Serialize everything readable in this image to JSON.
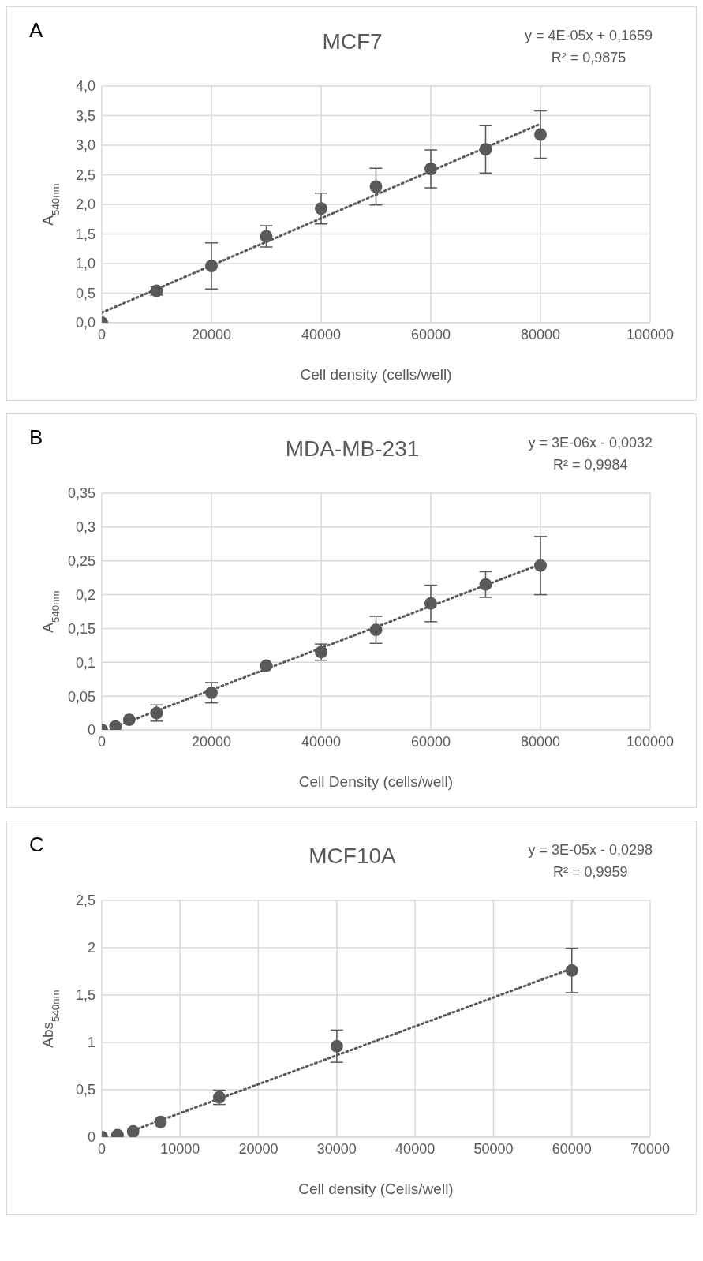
{
  "chart_data": [
    {
      "type": "scatter",
      "title": "MCF7",
      "xlabel": "Cell density (cells/well)",
      "ylabel": "A$_{540nm}$",
      "annotations": [
        "A",
        "y = 4E-05x + 0,1659",
        "R² = 0,9875"
      ],
      "xlim": [
        0,
        100000
      ],
      "xticks": [
        0,
        20000,
        40000,
        60000,
        80000,
        100000
      ],
      "ylim": [
        0,
        4
      ],
      "yticks": [
        {
          "value": 0,
          "label": "0,0"
        },
        {
          "value": 0.5,
          "label": "0,5"
        },
        {
          "value": 1,
          "label": "1,0"
        },
        {
          "value": 1.5,
          "label": "1,5"
        },
        {
          "value": 2,
          "label": "2,0"
        },
        {
          "value": 2.5,
          "label": "2,5"
        },
        {
          "value": 3,
          "label": "3,0"
        },
        {
          "value": 3.5,
          "label": "3,5"
        },
        {
          "value": 4,
          "label": "4,0"
        }
      ],
      "grid": true,
      "series": [
        {
          "marker": "circle",
          "color": "#595959",
          "x": [
            0,
            10000,
            20000,
            30000,
            40000,
            50000,
            60000,
            70000,
            80000
          ],
          "values": [
            0,
            0.54,
            0.96,
            1.46,
            1.93,
            2.3,
            2.6,
            2.93,
            3.18
          ],
          "errors": [
            null,
            0.07,
            0.39,
            0.18,
            0.26,
            0.31,
            0.32,
            0.4,
            0.4
          ]
        },
        {
          "type": "line",
          "marker": "none",
          "color": "#595959",
          "line_style": "dotted",
          "x": [
            0,
            80000
          ],
          "values": [
            0.17,
            3.36
          ]
        }
      ]
    },
    {
      "type": "scatter",
      "title": "MDA-MB-231",
      "xlabel": "Cell Density (cells/well)",
      "ylabel": "A$_{540nm}$",
      "annotations": [
        "B",
        "y = 3E-06x - 0,0032",
        "R² = 0,9984"
      ],
      "xlim": [
        0,
        100000
      ],
      "xticks": [
        0,
        20000,
        40000,
        60000,
        80000,
        100000
      ],
      "ylim": [
        0,
        0.35
      ],
      "yticks": [
        0,
        {
          "value": 0.05,
          "label": "0,05"
        },
        {
          "value": 0.1,
          "label": "0,1"
        },
        {
          "value": 0.15,
          "label": "0,15"
        },
        {
          "value": 0.2,
          "label": "0,2"
        },
        {
          "value": 0.25,
          "label": "0,25"
        },
        {
          "value": 0.3,
          "label": "0,3"
        },
        {
          "value": 0.35,
          "label": "0,35"
        }
      ],
      "grid": true,
      "series": [
        {
          "marker": "circle",
          "color": "#595959",
          "x": [
            0,
            2500,
            5000,
            10000,
            20000,
            30000,
            40000,
            50000,
            60000,
            70000,
            80000
          ],
          "values": [
            0,
            0.005,
            0.015,
            0.025,
            0.055,
            0.095,
            0.115,
            0.148,
            0.187,
            0.215,
            0.243
          ],
          "errors": [
            null,
            null,
            null,
            0.012,
            0.015,
            null,
            0.012,
            0.02,
            0.027,
            0.019,
            0.043
          ]
        },
        {
          "type": "line",
          "marker": "none",
          "color": "#595959",
          "line_style": "dotted",
          "x": [
            2500,
            80000
          ],
          "values": [
            0.005,
            0.245
          ]
        }
      ]
    },
    {
      "type": "scatter",
      "title": "MCF10A",
      "xlabel": "Cell density (Cells/well)",
      "ylabel": "Abs$_{540nm}$",
      "annotations": [
        "C",
        "y = 3E-05x - 0,0298",
        "R² = 0,9959"
      ],
      "xlim": [
        0,
        70000
      ],
      "xticks": [
        0,
        10000,
        20000,
        30000,
        40000,
        50000,
        60000,
        70000
      ],
      "ylim": [
        0,
        2.5
      ],
      "yticks": [
        0,
        {
          "value": 0.5,
          "label": "0,5"
        },
        1,
        {
          "value": 1.5,
          "label": "1,5"
        },
        2,
        {
          "value": 2.5,
          "label": "2,5"
        }
      ],
      "grid": true,
      "series": [
        {
          "marker": "circle",
          "color": "#595959",
          "x": [
            0,
            2000,
            4000,
            7500,
            15000,
            30000,
            60000
          ],
          "values": [
            0,
            0.02,
            0.06,
            0.16,
            0.42,
            0.96,
            1.76
          ],
          "errors": [
            null,
            null,
            null,
            null,
            0.075,
            0.17,
            0.235
          ]
        },
        {
          "type": "line",
          "marker": "none",
          "color": "#595959",
          "line_style": "dotted",
          "x": [
            4000,
            60000
          ],
          "values": [
            0.07,
            1.78
          ]
        }
      ]
    }
  ]
}
